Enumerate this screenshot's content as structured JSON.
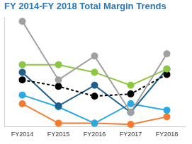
{
  "chart_data": {
    "type": "line",
    "title": "FY 2014-FY 2018 Total Margin Trends",
    "categories": [
      "FY2014",
      "FY2015",
      "FY2016",
      "FY2017",
      "FY2018"
    ],
    "series": [
      {
        "color": "#a0a0a0",
        "marker": "circle",
        "line_style": "solid",
        "values": [
          9.7,
          4.3,
          6.5,
          1.3,
          6.7
        ]
      },
      {
        "color": "#8dc63f",
        "marker": "circle",
        "line_style": "solid",
        "values": [
          5.7,
          5.7,
          5.0,
          3.8,
          5.3
        ]
      },
      {
        "color": "#000000",
        "marker": "circle",
        "line_style": "dashed",
        "values": [
          4.3,
          3.7,
          2.8,
          3.0,
          4.8
        ]
      },
      {
        "color": "#1f5f8b",
        "marker": "circle",
        "line_style": "solid",
        "values": [
          5.0,
          1.9,
          3.8,
          1.3,
          5.3
        ]
      },
      {
        "color": "#29abe2",
        "marker": "circle",
        "line_style": "solid",
        "values": [
          2.9,
          1.8,
          0.3,
          2.1,
          1.5
        ]
      },
      {
        "color": "#f47b30",
        "marker": "circle",
        "line_style": "solid",
        "values": [
          2.1,
          0.3,
          0.3,
          0.2,
          0.9
        ]
      }
    ],
    "ylim": [
      0,
      10
    ],
    "yticks": [],
    "grid": false,
    "tick_labels": "x"
  }
}
